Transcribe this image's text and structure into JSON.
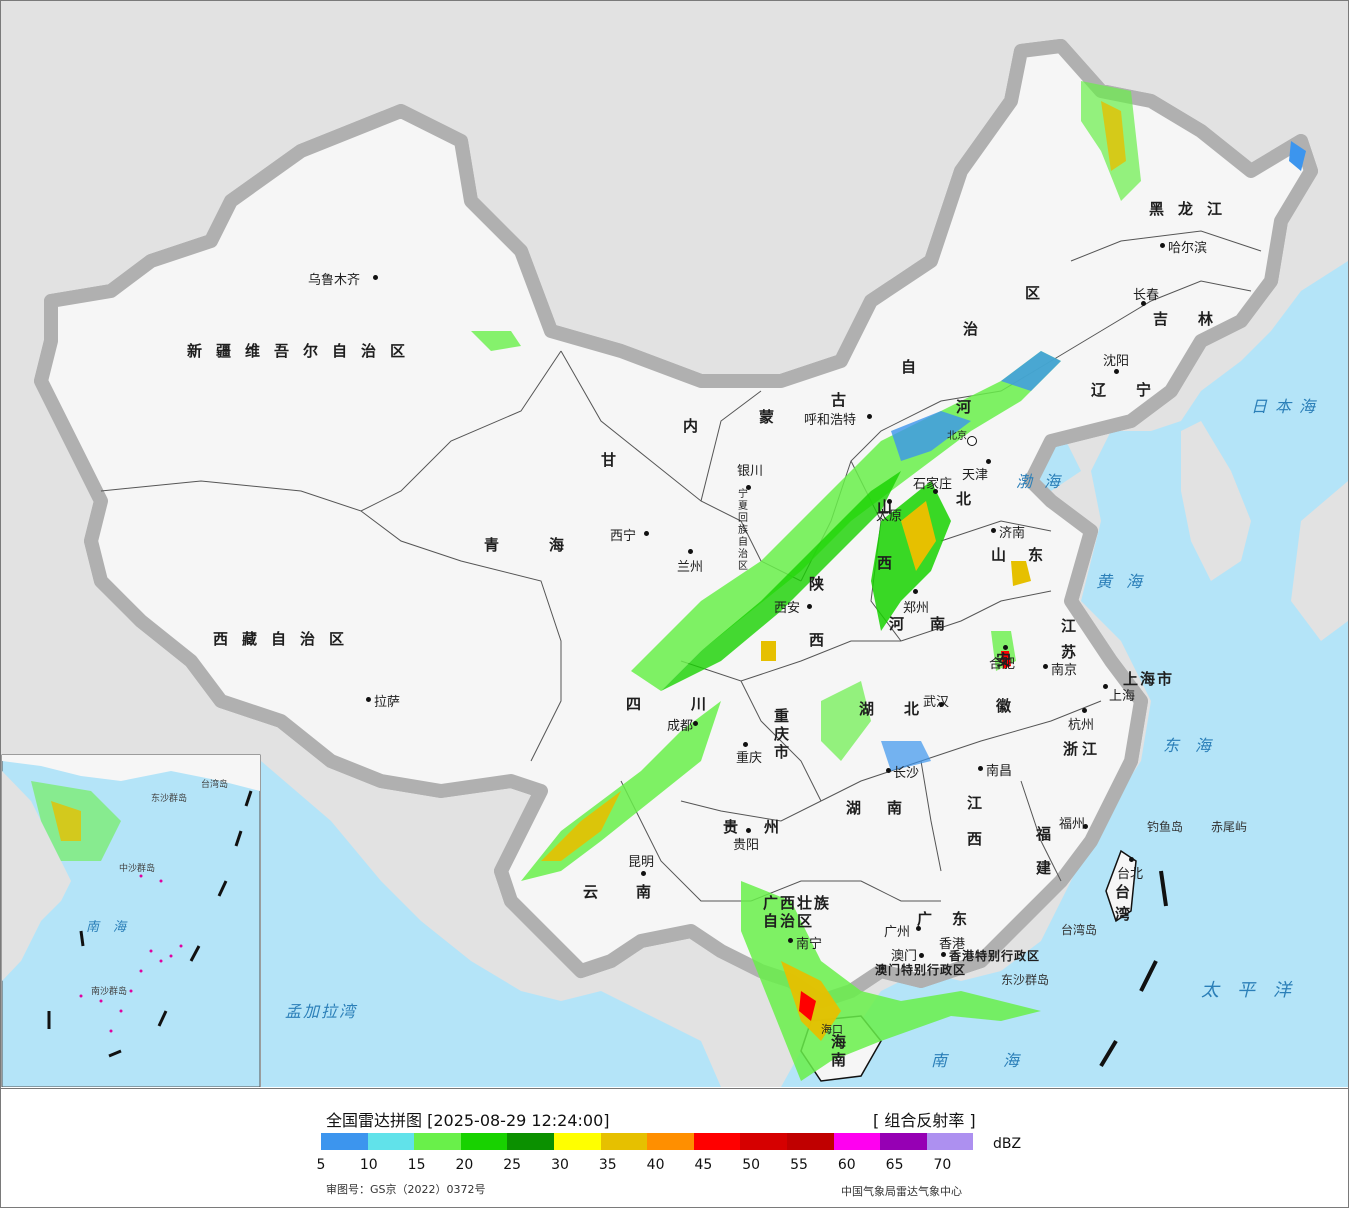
{
  "legend": {
    "title": "全国雷达拼图 [2025-08-29 12:24:00]",
    "product": "[ 组合反射率 ]",
    "unit": "dBZ",
    "approval": "审图号：GS京（2022）0372号",
    "producer": "中国气象局雷达气象中心",
    "ticks": [
      "5",
      "10",
      "15",
      "20",
      "25",
      "30",
      "35",
      "40",
      "45",
      "50",
      "55",
      "60",
      "65",
      "70"
    ],
    "colors": [
      "#3c95ee",
      "#61e2ea",
      "#69f04a",
      "#18d200",
      "#0b9000",
      "#ffff00",
      "#e6c000",
      "#ff8f00",
      "#ff0000",
      "#d60000",
      "#c00000",
      "#ff00f0",
      "#9600b4",
      "#ad90f0"
    ]
  },
  "map": {
    "provinces": [
      {
        "name": "新疆维吾尔自治区",
        "key": "xinjiang"
      },
      {
        "name": "西藏自治区",
        "key": "xizang"
      },
      {
        "name": "青海",
        "key": "qinghai"
      },
      {
        "name": "甘",
        "key": "gansu1"
      },
      {
        "name": "内",
        "key": "nm1"
      },
      {
        "name": "蒙",
        "key": "nm2"
      },
      {
        "name": "古",
        "key": "nm3"
      },
      {
        "name": "自",
        "key": "nm4"
      },
      {
        "name": "治",
        "key": "nm5"
      },
      {
        "name": "区",
        "key": "nm6"
      },
      {
        "name": "黑龙江",
        "key": "heilongjiang"
      },
      {
        "name": "吉林",
        "key": "jilin"
      },
      {
        "name": "辽宁",
        "key": "liaoning"
      },
      {
        "name": "河",
        "key": "hebei1"
      },
      {
        "name": "北",
        "key": "hebei2"
      },
      {
        "name": "山西",
        "key": "shanxi"
      },
      {
        "name": "陕西",
        "key": "shaanxi"
      },
      {
        "name": "山东",
        "key": "shandong"
      },
      {
        "name": "河南",
        "key": "henan"
      },
      {
        "name": "江苏",
        "key": "jiangsu"
      },
      {
        "name": "安徽",
        "key": "anhui"
      },
      {
        "name": "四川",
        "key": "sichuan"
      },
      {
        "name": "湖北",
        "key": "hubei"
      },
      {
        "name": "重庆市",
        "key": "chongqing"
      },
      {
        "name": "浙江",
        "key": "zhejiang"
      },
      {
        "name": "江西",
        "key": "jiangxi"
      },
      {
        "name": "湖南",
        "key": "hunan"
      },
      {
        "name": "贵州",
        "key": "guizhou"
      },
      {
        "name": "福建",
        "key": "fujian"
      },
      {
        "name": "云南",
        "key": "yunnan"
      },
      {
        "name": "广西壮族自治区",
        "key": "guangxi"
      },
      {
        "name": "广东",
        "key": "guangdong"
      },
      {
        "name": "台湾",
        "key": "taiwan"
      },
      {
        "name": "海南",
        "key": "hainan"
      },
      {
        "name": "上海市",
        "key": "shanghai"
      },
      {
        "name": "宁夏回族自治区",
        "key": "ningxia"
      },
      {
        "name": "香港特别行政区",
        "key": "hongkong"
      },
      {
        "name": "澳门特别行政区",
        "key": "macau"
      }
    ],
    "cities": [
      {
        "name": "乌鲁木齐",
        "key": "urumqi"
      },
      {
        "name": "拉萨",
        "key": "lhasa"
      },
      {
        "name": "西宁",
        "key": "xining"
      },
      {
        "name": "兰州",
        "key": "lanzhou"
      },
      {
        "name": "银川",
        "key": "yinchuan"
      },
      {
        "name": "呼和浩特",
        "key": "hohhot"
      },
      {
        "name": "哈尔滨",
        "key": "harbin"
      },
      {
        "name": "长春",
        "key": "changchun"
      },
      {
        "name": "沈阳",
        "key": "shenyang"
      },
      {
        "name": "北京",
        "key": "beijing"
      },
      {
        "name": "天津",
        "key": "tianjin"
      },
      {
        "name": "石家庄",
        "key": "shijiazhuang"
      },
      {
        "name": "太原",
        "key": "taiyuan"
      },
      {
        "name": "济南",
        "key": "jinan"
      },
      {
        "name": "郑州",
        "key": "zhengzhou"
      },
      {
        "name": "西安",
        "key": "xian"
      },
      {
        "name": "合肥",
        "key": "hefei"
      },
      {
        "name": "南京",
        "key": "nanjing"
      },
      {
        "name": "上海",
        "key": "shanghaicity"
      },
      {
        "name": "杭州",
        "key": "hangzhou"
      },
      {
        "name": "武汉",
        "key": "wuhan"
      },
      {
        "name": "成都",
        "key": "chengdu"
      },
      {
        "name": "重庆",
        "key": "chongqingcity"
      },
      {
        "name": "长沙",
        "key": "changsha"
      },
      {
        "name": "南昌",
        "key": "nanchang"
      },
      {
        "name": "贵阳",
        "key": "guiyang"
      },
      {
        "name": "福州",
        "key": "fuzhou"
      },
      {
        "name": "台北",
        "key": "taipei"
      },
      {
        "name": "昆明",
        "key": "kunming"
      },
      {
        "name": "南宁",
        "key": "nanning"
      },
      {
        "name": "广州",
        "key": "guangzhou"
      },
      {
        "name": "香港",
        "key": "hk"
      },
      {
        "name": "澳门",
        "key": "mo"
      },
      {
        "name": "海口",
        "key": "haikou"
      }
    ],
    "seas": [
      {
        "name": "日本海",
        "key": "japansea"
      },
      {
        "name": "渤海",
        "key": "bohai"
      },
      {
        "name": "黄海",
        "key": "yellowsea"
      },
      {
        "name": "东海",
        "key": "eastsea"
      },
      {
        "name": "太平洋",
        "key": "pacific"
      },
      {
        "name": "南海",
        "key": "southsea"
      },
      {
        "name": "孟加拉湾",
        "key": "bengal"
      }
    ],
    "islands": [
      {
        "name": "钓鱼岛",
        "key": "diaoyu"
      },
      {
        "name": "赤尾屿",
        "key": "chiwei"
      },
      {
        "name": "台湾岛",
        "key": "taiwanisland"
      },
      {
        "name": "东沙群岛",
        "key": "dongsha"
      }
    ],
    "inset_labels": [
      {
        "name": "南海",
        "key": "inset_sea"
      },
      {
        "name": "中沙群岛",
        "key": "zhongsha"
      },
      {
        "name": "南沙群岛",
        "key": "nansha"
      },
      {
        "name": "东沙群岛",
        "key": "inset_dongsha"
      },
      {
        "name": "台湾岛",
        "key": "inset_taiwan"
      }
    ]
  }
}
